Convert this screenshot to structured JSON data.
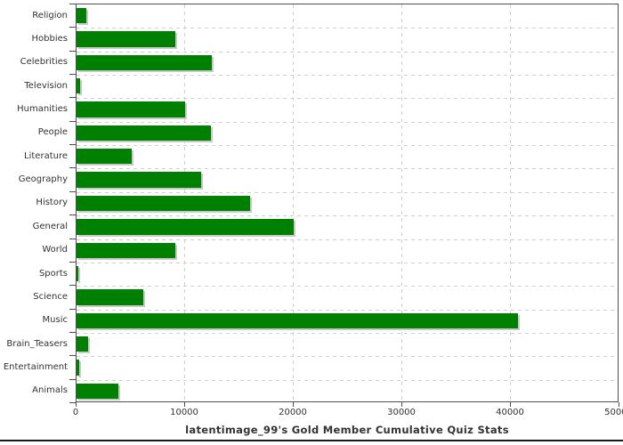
{
  "chart_data": {
    "type": "bar",
    "orientation": "horizontal",
    "title": "latentimage_99's Gold Member Cumulative Quiz Stats",
    "xlabel": "",
    "ylabel": "",
    "categories": [
      "Religion",
      "Hobbies",
      "Celebrities",
      "Television",
      "Humanities",
      "People",
      "Literature",
      "Geography",
      "History",
      "General",
      "World",
      "Sports",
      "Science",
      "Music",
      "Brain_Teasers",
      "Entertainment",
      "Animals"
    ],
    "values": [
      900,
      9100,
      12500,
      300,
      10000,
      12400,
      5100,
      11500,
      16000,
      20100,
      9100,
      200,
      6200,
      40800,
      1050,
      280,
      3900
    ],
    "xlim": [
      0,
      50000
    ],
    "x_ticks": [
      0,
      10000,
      20000,
      30000,
      40000,
      50000
    ],
    "grid": "dashed, light gray, vertical at each x tick and horizontal at category boundaries",
    "legend": "none",
    "bar_color": "#008000",
    "bar_shadow_color": "#c9c9c9",
    "plot_border_color": "#4d4d4d",
    "text_color": "#333333",
    "background_color": "#ffffff"
  }
}
